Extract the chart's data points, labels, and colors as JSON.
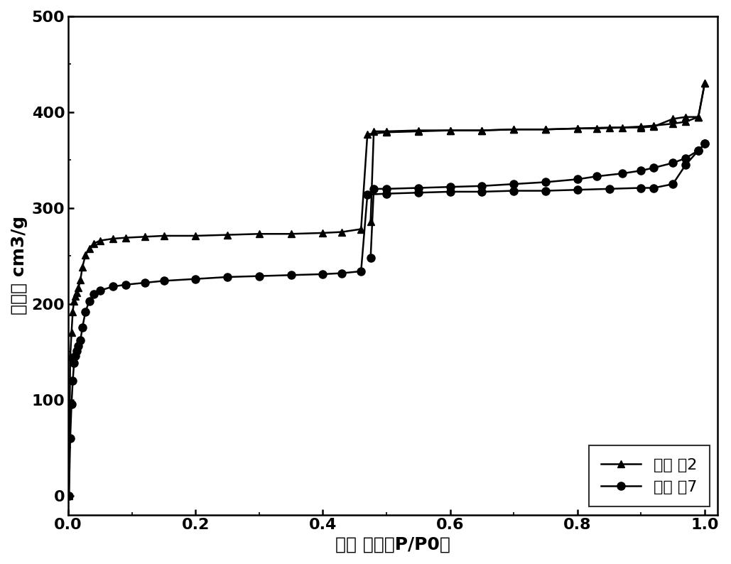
{
  "xlabel": "相对 压力（P/P0）",
  "ylabel": "吸附量 cm3/g",
  "xlim": [
    0.0,
    1.02
  ],
  "ylim": [
    -20,
    500
  ],
  "yticks": [
    0,
    100,
    200,
    300,
    400,
    500
  ],
  "xticks": [
    0.0,
    0.2,
    0.4,
    0.6,
    0.8,
    1.0
  ],
  "ex2_ads_x": [
    0.001,
    0.003,
    0.005,
    0.007,
    0.009,
    0.011,
    0.013,
    0.016,
    0.019,
    0.022,
    0.027,
    0.033,
    0.04,
    0.05,
    0.07,
    0.09,
    0.12,
    0.15,
    0.2,
    0.25,
    0.3,
    0.35,
    0.4,
    0.43,
    0.46,
    0.47,
    0.5,
    0.55,
    0.6,
    0.65,
    0.7,
    0.75,
    0.8,
    0.85,
    0.9,
    0.92,
    0.95,
    0.97,
    0.99,
    1.0
  ],
  "ex2_ads_y": [
    0,
    145,
    170,
    192,
    203,
    208,
    212,
    217,
    225,
    238,
    251,
    258,
    263,
    266,
    268,
    269,
    270,
    271,
    271,
    272,
    273,
    273,
    274,
    275,
    278,
    377,
    379,
    380,
    381,
    381,
    382,
    382,
    383,
    384,
    384,
    385,
    393,
    395,
    395,
    430
  ],
  "ex2_des_x": [
    1.0,
    0.99,
    0.97,
    0.95,
    0.92,
    0.9,
    0.87,
    0.83,
    0.8,
    0.75,
    0.7,
    0.65,
    0.6,
    0.55,
    0.5,
    0.48,
    0.475
  ],
  "ex2_des_y": [
    430,
    395,
    390,
    388,
    386,
    385,
    384,
    383,
    383,
    382,
    382,
    381,
    381,
    381,
    380,
    380,
    286
  ],
  "ex7_ads_x": [
    0.001,
    0.003,
    0.005,
    0.007,
    0.009,
    0.011,
    0.013,
    0.016,
    0.019,
    0.022,
    0.027,
    0.033,
    0.04,
    0.05,
    0.07,
    0.09,
    0.12,
    0.15,
    0.2,
    0.25,
    0.3,
    0.35,
    0.4,
    0.43,
    0.46,
    0.47,
    0.5,
    0.55,
    0.6,
    0.65,
    0.7,
    0.75,
    0.8,
    0.85,
    0.9,
    0.92,
    0.95,
    0.97,
    0.99,
    1.0
  ],
  "ex7_ads_y": [
    0,
    60,
    95,
    120,
    138,
    146,
    151,
    156,
    162,
    175,
    192,
    203,
    210,
    214,
    218,
    220,
    222,
    224,
    226,
    228,
    229,
    230,
    231,
    232,
    234,
    314,
    315,
    316,
    317,
    317,
    318,
    318,
    319,
    320,
    321,
    321,
    325,
    345,
    360,
    367
  ],
  "ex7_des_x": [
    1.0,
    0.99,
    0.97,
    0.95,
    0.92,
    0.9,
    0.87,
    0.83,
    0.8,
    0.75,
    0.7,
    0.65,
    0.6,
    0.55,
    0.5,
    0.48,
    0.475
  ],
  "ex7_des_y": [
    367,
    360,
    352,
    347,
    342,
    339,
    336,
    333,
    330,
    327,
    325,
    323,
    322,
    321,
    320,
    320,
    248
  ],
  "color": "#000000",
  "font_size": 16,
  "label_font_size": 18,
  "tick_font_size": 16,
  "legend_labels": [
    "实施 例2",
    "实施 例7"
  ]
}
